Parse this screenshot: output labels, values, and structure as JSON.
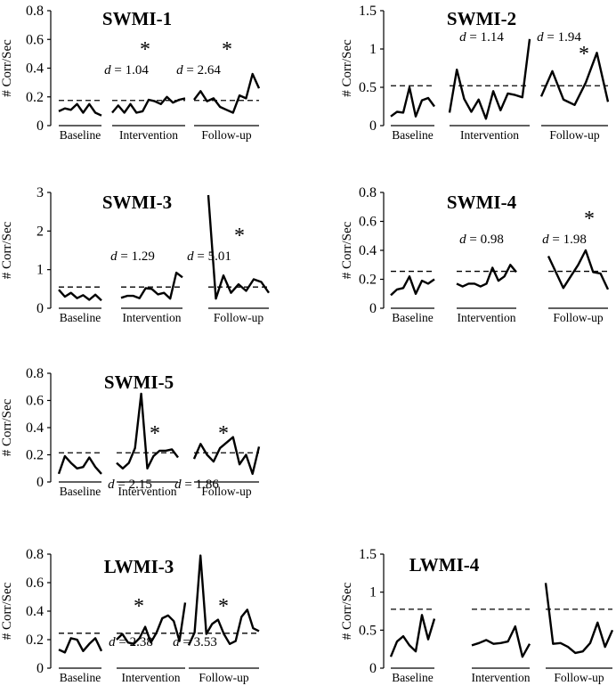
{
  "figure": {
    "ylabel": "# Corr/Sec"
  },
  "chart_data": [
    {
      "type": "line",
      "title": "SWMI-1",
      "ylabel": "# Corr/Sec",
      "ylim": [
        0,
        0.8
      ],
      "yticks": [
        "0",
        "0.2",
        "0.4",
        "0.6",
        "0.8"
      ],
      "criterion": 0.175,
      "phases": [
        {
          "name": "Baseline",
          "values": [
            0.1,
            0.12,
            0.11,
            0.15,
            0.09,
            0.15,
            0.09,
            0.07
          ],
          "d": null,
          "star": false
        },
        {
          "name": "Intervention",
          "values": [
            0.09,
            0.14,
            0.09,
            0.15,
            0.09,
            0.1,
            0.18,
            0.17,
            0.15,
            0.2,
            0.16,
            0.18,
            0.19
          ],
          "d": "d = 1.04",
          "star": true
        },
        {
          "name": "Follow-up",
          "values": [
            0.18,
            0.24,
            0.17,
            0.19,
            0.13,
            0.11,
            0.09,
            0.21,
            0.19,
            0.36,
            0.26
          ],
          "d": "d = 2.64",
          "star": true
        }
      ]
    },
    {
      "type": "line",
      "title": "SWMI-2",
      "ylabel": "# Corr/Sec",
      "ylim": [
        0,
        1.5
      ],
      "yticks": [
        "0",
        "0.5",
        "1",
        "1.5"
      ],
      "criterion": 0.52,
      "phases": [
        {
          "name": "Baseline",
          "values": [
            0.12,
            0.18,
            0.17,
            0.5,
            0.12,
            0.33,
            0.36,
            0.25
          ],
          "d": null,
          "star": false
        },
        {
          "name": "Intervention",
          "values": [
            0.17,
            0.73,
            0.35,
            0.18,
            0.34,
            0.09,
            0.45,
            0.2,
            0.42,
            0.4,
            0.37,
            1.13
          ],
          "d": "d = 1.14",
          "star": false
        },
        {
          "name": "Follow-up",
          "values": [
            0.38,
            0.71,
            0.34,
            0.27,
            0.56,
            0.95,
            0.31
          ],
          "d": "d = 1.94",
          "star": true
        }
      ]
    },
    {
      "type": "line",
      "title": "SWMI-3",
      "ylabel": "# Corr/Sec",
      "ylim": [
        0,
        3
      ],
      "yticks": [
        "0",
        "1",
        "2",
        "3"
      ],
      "criterion": 0.55,
      "phases": [
        {
          "name": "Baseline",
          "values": [
            0.48,
            0.3,
            0.4,
            0.26,
            0.34,
            0.22,
            0.35,
            0.2
          ],
          "d": null,
          "star": false
        },
        {
          "name": "Intervention",
          "values": [
            0.27,
            0.32,
            0.32,
            0.26,
            0.52,
            0.5,
            0.36,
            0.4,
            0.25,
            0.92,
            0.8
          ],
          "d": "d = 1.29",
          "star": false
        },
        {
          "name": "Follow-up",
          "values": [
            2.93,
            0.25,
            0.85,
            0.4,
            0.62,
            0.45,
            0.75,
            0.68,
            0.4
          ],
          "d": "d = 5.01",
          "star": true
        }
      ]
    },
    {
      "type": "line",
      "title": "SWMI-4",
      "ylabel": "# Corr/Sec",
      "ylim": [
        0,
        0.8
      ],
      "yticks": [
        "0",
        "0.2",
        "0.4",
        "0.6",
        "0.8"
      ],
      "criterion": 0.255,
      "phases": [
        {
          "name": "Baseline",
          "values": [
            0.09,
            0.13,
            0.14,
            0.22,
            0.1,
            0.19,
            0.17,
            0.2
          ],
          "d": null,
          "star": false
        },
        {
          "name": "Intervention",
          "values": [
            0.17,
            0.15,
            0.17,
            0.17,
            0.15,
            0.17,
            0.28,
            0.19,
            0.22,
            0.3,
            0.25
          ],
          "d": "d = 0.98",
          "star": false
        },
        {
          "name": "Follow-up",
          "values": [
            0.36,
            0.25,
            0.14,
            0.22,
            0.3,
            0.4,
            0.25,
            0.24,
            0.13
          ],
          "d": "d = 1.98",
          "star": true
        }
      ]
    },
    {
      "type": "line",
      "title": "SWMI-5",
      "ylabel": "# Corr/Sec",
      "ylim": [
        0,
        0.8
      ],
      "yticks": [
        "0",
        "0.2",
        "0.4",
        "0.6",
        "0.8"
      ],
      "criterion": 0.215,
      "phases": [
        {
          "name": "Baseline",
          "values": [
            0.06,
            0.19,
            0.14,
            0.1,
            0.11,
            0.18,
            0.11,
            0.06
          ],
          "d": null,
          "star": false
        },
        {
          "name": "Intervention",
          "values": [
            0.14,
            0.1,
            0.14,
            0.25,
            0.65,
            0.1,
            0.19,
            0.23,
            0.23,
            0.24,
            0.18
          ],
          "d": "d = 2.15",
          "star": true
        },
        {
          "name": "Follow-up",
          "values": [
            0.17,
            0.28,
            0.2,
            0.15,
            0.25,
            0.29,
            0.33,
            0.13,
            0.2,
            0.06,
            0.26
          ],
          "d": "d = 1.86",
          "star": true
        }
      ]
    },
    {
      "type": "line",
      "title": "LWMI-3",
      "ylabel": "# Corr/Sec",
      "ylim": [
        0,
        0.8
      ],
      "yticks": [
        "0",
        "0.2",
        "0.4",
        "0.6",
        "0.8"
      ],
      "criterion": 0.245,
      "phases": [
        {
          "name": "Baseline",
          "values": [
            0.13,
            0.11,
            0.21,
            0.2,
            0.12,
            0.17,
            0.21,
            0.12
          ],
          "d": null,
          "star": false
        },
        {
          "name": "Intervention",
          "values": [
            0.2,
            0.24,
            0.18,
            0.17,
            0.21,
            0.29,
            0.18,
            0.25,
            0.35,
            0.37,
            0.33,
            0.19,
            0.46
          ],
          "d": "d = 2.38",
          "star": true
        },
        {
          "name": "Follow-up",
          "values": [
            0.16,
            0.25,
            0.79,
            0.24,
            0.31,
            0.34,
            0.24,
            0.17,
            0.19,
            0.36,
            0.41,
            0.28,
            0.26
          ],
          "d": "d = 3.53",
          "star": true
        }
      ]
    },
    {
      "type": "line",
      "title": "LWMI-4",
      "ylabel": "# Corr/Sec",
      "ylim": [
        0,
        1.5
      ],
      "yticks": [
        "0",
        "0.5",
        "1",
        "1.5"
      ],
      "criterion": 0.775,
      "phases": [
        {
          "name": "Baseline",
          "values": [
            0.15,
            0.35,
            0.42,
            0.3,
            0.22,
            0.7,
            0.38,
            0.65
          ],
          "d": null,
          "star": false
        },
        {
          "name": "Intervention",
          "values": [
            0.3,
            0.33,
            0.37,
            0.32,
            0.33,
            0.35,
            0.55,
            0.15,
            0.32
          ],
          "d": null,
          "star": false
        },
        {
          "name": "Follow-up",
          "values": [
            1.12,
            0.32,
            0.33,
            0.28,
            0.2,
            0.22,
            0.33,
            0.6,
            0.28,
            0.5
          ],
          "d": null,
          "star": false
        }
      ]
    }
  ]
}
